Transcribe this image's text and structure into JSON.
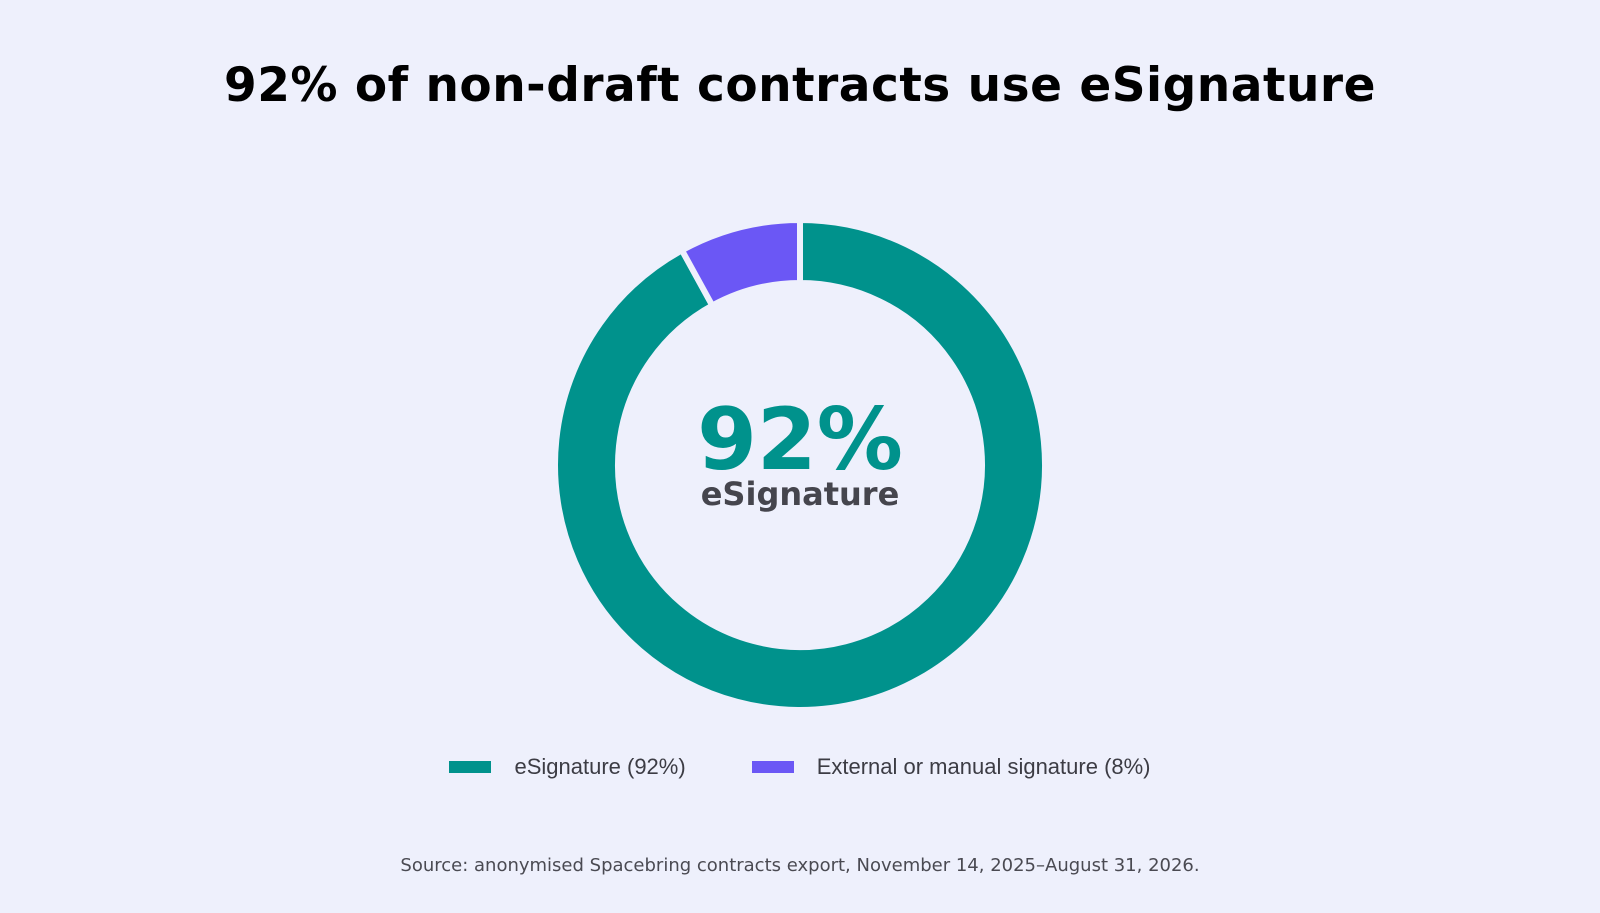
{
  "chart_data": {
    "type": "pie",
    "title": "92% of non-draft contracts use eSignature",
    "center_value": "92%",
    "center_label": "eSignature",
    "slices": [
      {
        "name": "eSignature",
        "value": 92,
        "color": "#00928c",
        "legend_label": "eSignature (92%)"
      },
      {
        "name": "External or manual signature",
        "value": 8,
        "color": "#6b57f5",
        "legend_label": "External or manual signature (8%)"
      }
    ],
    "legend_placement": "bottom",
    "source": "Source: anonymised Spacebring contracts export, November 14, 2025–August 31, 2026."
  }
}
